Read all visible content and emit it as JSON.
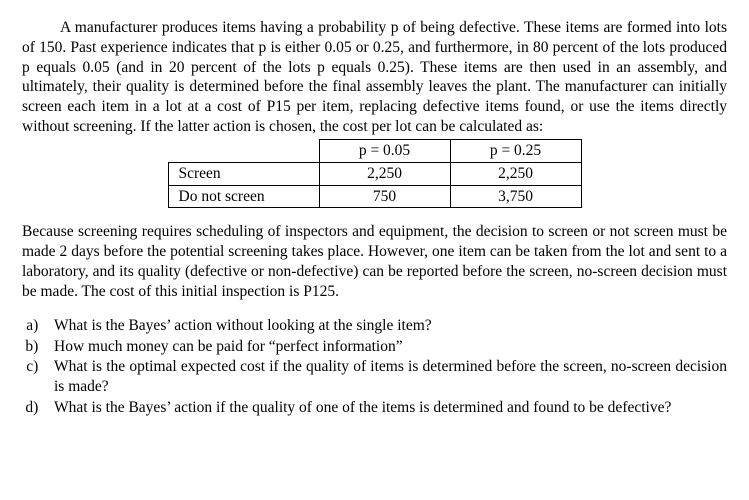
{
  "intro_para": "A manufacturer produces items having a probability p of being defective. These items are formed into lots of 150. Past experience indicates that p is either 0.05 or 0.25, and furthermore, in 80 percent of the lots produced p equals 0.05 (and in 20 percent of the lots p equals 0.25). These items are then used in an assembly, and ultimately, their quality is determined before the final assembly leaves the plant. The manufacturer can initially screen each item in a lot at a cost of P15 per item, replacing defective items found, or use the items directly without screening. If the latter action is chosen, the cost per lot can be calculated as:",
  "table": {
    "col1_header": "p = 0.05",
    "col2_header": "p = 0.25",
    "row1_label": "Screen",
    "row1_col1": "2,250",
    "row1_col2": "2,250",
    "row2_label": "Do not screen",
    "row2_col1": "750",
    "row2_col2": "3,750"
  },
  "second_para": "Because screening requires scheduling of inspectors and equipment, the decision to screen or not screen must be made 2 days before the potential screening takes place. However, one item can be taken from the lot and sent to a laboratory, and its quality (defective or non-defective) can be reported before the screen, no-screen decision must be made. The cost of this initial inspection is P125.",
  "questions": {
    "a": "What is the Bayes’ action without looking at the single item?",
    "b": "How much  money can be  paid  for “perfect information”",
    "c": "What is the optimal expected cost if the quality of items is determined before the screen, no-screen decision is made?",
    "d": "What is the Bayes’ action if the quality of one of the items is determined and found to be defective?"
  }
}
